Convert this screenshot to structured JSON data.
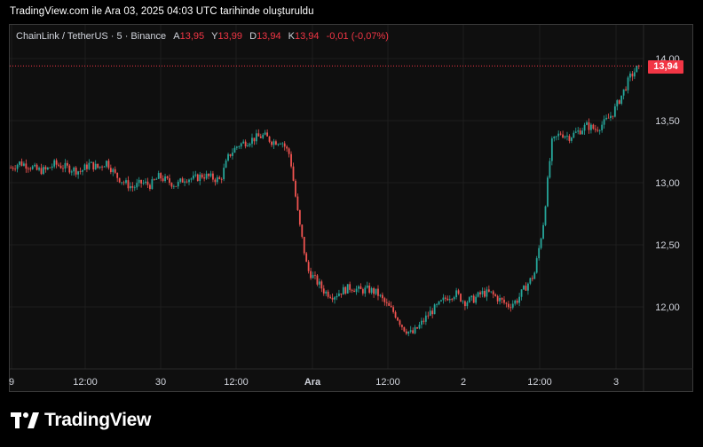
{
  "caption": "TradingView.com ile Ara 03, 2025 04:03 UTC tarihinde oluşturuldu",
  "legend": {
    "symbol": "ChainLink / TetherUS · 5 · Binance",
    "open_label": "A",
    "open_value": "13,95",
    "high_label": "Y",
    "high_value": "13,99",
    "low_label": "D",
    "low_value": "13,94",
    "close_label": "K",
    "close_value": "13,94",
    "change": "-0,01 (-0,07%)"
  },
  "last_price_badge": "13,94",
  "brand": {
    "name": "TradingView",
    "icon": "tradingview-logo-icon"
  },
  "colors": {
    "up": "#26a69a",
    "down": "#ef5350",
    "badge": "#f23645",
    "background": "#0f0f0f",
    "grid": "#1e1e1e"
  },
  "chart_data": {
    "type": "candlestick",
    "title": "",
    "xlabel": "",
    "ylabel": "",
    "ylim": [
      11.65,
      14.1
    ],
    "grid": true,
    "y_ticks": [
      {
        "value": 12.0,
        "label": "12,00"
      },
      {
        "value": 12.5,
        "label": "12,50"
      },
      {
        "value": 13.0,
        "label": "13,00"
      },
      {
        "value": 13.5,
        "label": "13,50"
      },
      {
        "value": 14.0,
        "label": "14,00"
      }
    ],
    "x_ticks": [
      "9",
      "12:00",
      "30",
      "12:00",
      "Ara",
      "12:00",
      "2",
      "12:00",
      "3"
    ],
    "bold_x_ticks": [
      "Ara"
    ],
    "last_price": 13.94,
    "trend_points": [
      13.12,
      13.16,
      13.14,
      13.1,
      13.1,
      13.15,
      13.13,
      13.11,
      13.09,
      13.15,
      13.12,
      13.17,
      13.06,
      13.0,
      12.96,
      13.0,
      12.98,
      13.05,
      13.01,
      12.98,
      13.04,
      13.03,
      13.06,
      13.04,
      13.02,
      13.22,
      13.3,
      13.33,
      13.36,
      13.38,
      13.33,
      13.34,
      13.22,
      12.7,
      12.3,
      12.21,
      12.12,
      12.09,
      12.13,
      12.16,
      12.13,
      12.14,
      12.11,
      12.02,
      11.95,
      11.83,
      11.78,
      11.86,
      11.95,
      12.01,
      12.08,
      12.11,
      12.04,
      12.06,
      12.11,
      12.11,
      12.06,
      12.01,
      12.05,
      12.16,
      12.26,
      12.65,
      13.32,
      13.4,
      13.37,
      13.41,
      13.46,
      13.43,
      13.48,
      13.56,
      13.7,
      13.85,
      13.94
    ]
  }
}
